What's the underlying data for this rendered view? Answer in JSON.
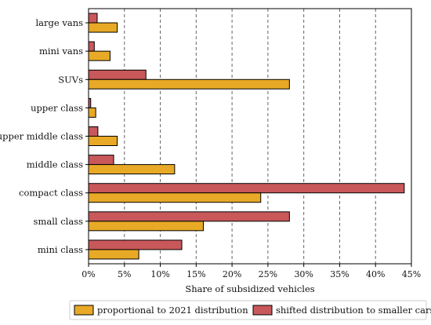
{
  "chart_data": {
    "type": "bar",
    "orientation": "horizontal",
    "categories": [
      "large vans",
      "mini vans",
      "SUVs",
      "upper class",
      "upper middle class",
      "middle class",
      "compact class",
      "small class",
      "mini class"
    ],
    "series": [
      {
        "name": "shifted distribution to smaller cars",
        "color": "#c8585a",
        "values": [
          1.2,
          0.8,
          8.0,
          0.3,
          1.3,
          3.5,
          44.0,
          28.0,
          13.0
        ]
      },
      {
        "name": "proportional to 2021 distribution",
        "color": "#e8a926",
        "values": [
          4.0,
          3.0,
          28.0,
          1.0,
          4.0,
          12.0,
          24.0,
          16.0,
          7.0
        ]
      }
    ],
    "xlabel": "Share of subsidized vehicles",
    "xlim": [
      0,
      45
    ],
    "xticks": [
      0,
      5,
      10,
      15,
      20,
      25,
      30,
      35,
      40,
      45
    ],
    "xtick_labels": [
      "0%",
      "5%",
      "10%",
      "15%",
      "20%",
      "25%",
      "30%",
      "35%",
      "40%",
      "45%"
    ],
    "grid": "vertical dashed",
    "legend_position": "bottom",
    "legend": [
      {
        "label": "proportional to 2021 distribution",
        "color": "#e8a926"
      },
      {
        "label": "shifted distribution to smaller cars",
        "color": "#c8585a"
      }
    ]
  }
}
